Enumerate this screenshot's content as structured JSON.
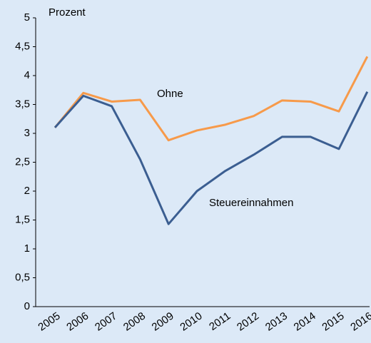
{
  "chart_data": {
    "type": "line",
    "y_axis_label": "Prozent",
    "categories": [
      "2005",
      "2006",
      "2007",
      "2008",
      "2009",
      "2010",
      "2011",
      "2012",
      "2013",
      "2014",
      "2015",
      "2016"
    ],
    "series": [
      {
        "name": "Ohne",
        "color": "#f79a4a",
        "values": [
          3.1,
          3.7,
          3.55,
          3.58,
          2.88,
          3.05,
          3.15,
          3.3,
          3.57,
          3.55,
          3.38,
          4.33
        ]
      },
      {
        "name": "Steuereinnahmen",
        "color": "#3b5e91",
        "values": [
          3.1,
          3.65,
          3.47,
          2.55,
          1.43,
          2.0,
          2.35,
          2.63,
          2.94,
          2.94,
          2.73,
          3.72
        ]
      }
    ],
    "ylim": [
      0,
      5
    ],
    "yticks": [
      0,
      {
        "value": 0.5,
        "label": "0,5"
      },
      1,
      {
        "value": 1.5,
        "label": "1,5"
      },
      2,
      {
        "value": 2.5,
        "label": "2,5"
      },
      3,
      {
        "value": 3.5,
        "label": "3,5"
      },
      4,
      {
        "value": 4.5,
        "label": "4,5"
      },
      5
    ],
    "grid": false
  }
}
